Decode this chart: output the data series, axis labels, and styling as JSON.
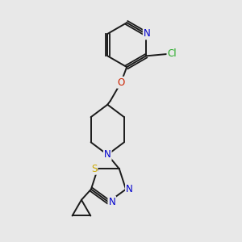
{
  "bg_color": "#e8e8e8",
  "bond_color": "#1a1a1a",
  "atom_colors": {
    "N": "#0000cc",
    "O": "#cc2200",
    "S": "#ccaa00",
    "Cl": "#22aa22",
    "C": "#1a1a1a"
  },
  "font_size": 8.5
}
